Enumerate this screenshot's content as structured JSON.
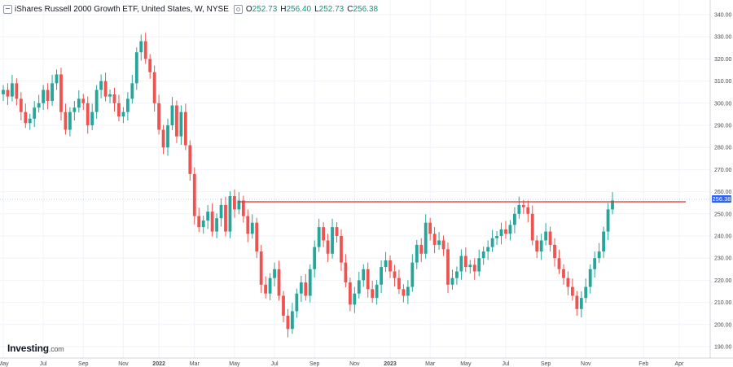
{
  "legend": {
    "title": "iShares Russell 2000 Growth ETF, United States, W, NYSE",
    "open_label": "O",
    "open_value": "252.73",
    "high_label": "H",
    "high_value": "256.40",
    "low_label": "L",
    "low_value": "252.73",
    "close_label": "C",
    "close_value": "256.38"
  },
  "logo": {
    "brand": "Investing",
    "domain": ".com"
  },
  "last_price_label": "256.38",
  "colors": {
    "up": "#26a69a",
    "down": "#ef5350",
    "resistance": "#e0312f",
    "price_line": "#2962ff",
    "grid": "#f0f3fa",
    "axis_text": "#4a4a4a"
  },
  "chart_data": {
    "type": "candlestick",
    "title": "iShares Russell 2000 Growth ETF, United States, W, NYSE",
    "ylim": [
      186,
      343
    ],
    "y_ticks": [
      190.0,
      200.0,
      210.0,
      220.0,
      230.0,
      240.0,
      250.0,
      260.0,
      270.0,
      280.0,
      290.0,
      300.0,
      310.0,
      320.0,
      330.0,
      340.0
    ],
    "x_ticks": [
      {
        "label": "May",
        "week": 0
      },
      {
        "label": "Jul",
        "week": 9
      },
      {
        "label": "Sep",
        "week": 18
      },
      {
        "label": "Nov",
        "week": 27
      },
      {
        "label": "2022",
        "week": 35
      },
      {
        "label": "Mar",
        "week": 43
      },
      {
        "label": "May",
        "week": 52
      },
      {
        "label": "Jul",
        "week": 61
      },
      {
        "label": "Sep",
        "week": 70
      },
      {
        "label": "Nov",
        "week": 79
      },
      {
        "label": "2023",
        "week": 87
      },
      {
        "label": "Mar",
        "week": 96
      },
      {
        "label": "May",
        "week": 104
      },
      {
        "label": "Jul",
        "week": 113
      },
      {
        "label": "Sep",
        "week": 122
      },
      {
        "label": "Nov",
        "week": 131
      },
      {
        "label": "Feb",
        "week": 144
      },
      {
        "label": "Apr",
        "week": 152
      }
    ],
    "close": [
      306,
      303,
      309,
      302,
      296,
      291,
      293,
      298,
      300,
      306,
      301,
      309,
      313,
      296,
      288,
      296,
      298,
      302,
      300,
      290,
      296,
      306,
      310,
      303,
      304,
      300,
      294,
      296,
      302,
      309,
      323,
      328,
      320,
      314,
      300,
      288,
      280,
      290,
      299,
      285,
      296,
      281,
      268,
      249,
      244,
      247,
      251,
      242,
      248,
      254,
      242,
      258,
      252,
      256,
      249,
      241,
      246,
      233,
      218,
      214,
      221,
      225,
      213,
      204,
      198,
      206,
      214,
      219,
      213,
      225,
      235,
      244,
      238,
      232,
      244,
      240,
      228,
      219,
      209,
      214,
      220,
      225,
      216,
      212,
      218,
      226,
      229,
      224,
      221,
      216,
      213,
      217,
      228,
      236,
      232,
      246,
      241,
      236,
      238,
      234,
      218,
      221,
      224,
      231,
      226,
      227,
      224,
      230,
      233,
      235,
      239,
      240,
      243,
      241,
      245,
      250,
      254,
      253,
      250,
      238,
      233,
      238,
      242,
      236,
      230,
      225,
      221,
      217,
      213,
      207,
      212,
      217,
      225,
      230,
      233,
      242,
      252,
      256
    ]
  }
}
